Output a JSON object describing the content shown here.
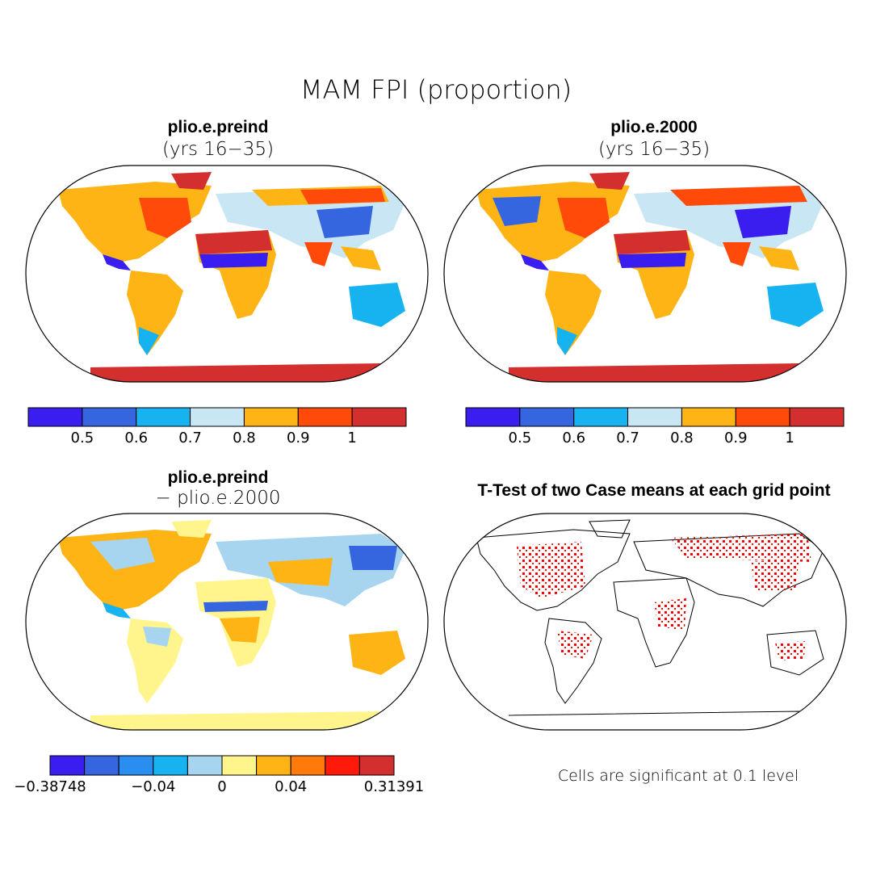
{
  "figure_title": "MAM FPI (proportion)",
  "panels": [
    {
      "title": "plio.e.preind",
      "subtitle": "(yrs 16−35)"
    },
    {
      "title": "plio.e.2000",
      "subtitle": "(yrs 16−35)"
    },
    {
      "title": "plio.e.preind",
      "subtitle": "− plio.e.2000"
    },
    {
      "title": "T-Test of two Case means at each grid point",
      "subtitle": ""
    }
  ],
  "colorbar_top": {
    "colors": [
      "#3a1ef0",
      "#3565df",
      "#17b3f0",
      "#c9e6f4",
      "#fdb414",
      "#ff4a0a",
      "#d32f2f"
    ],
    "labels": [
      "0.5",
      "0.6",
      "0.7",
      "0.8",
      "0.9",
      "1"
    ]
  },
  "colorbar_diff": {
    "colors": [
      "#3a1ef0",
      "#3565df",
      "#2a8ef0",
      "#17b3f0",
      "#a7d4ee",
      "#fff58c",
      "#fdb414",
      "#ff7a0a",
      "#ff1a0a",
      "#d32f2f"
    ],
    "labels": [
      "−0.38748",
      "−0.04",
      "0",
      "0.04",
      "0.31391"
    ]
  },
  "significance_note": "Cells are significant at 0.1 level",
  "significance_color": "#ff0000"
}
